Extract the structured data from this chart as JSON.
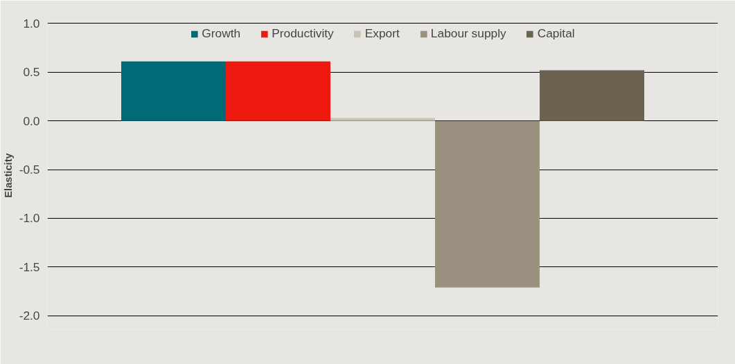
{
  "chart_data": {
    "type": "bar",
    "ylabel": "Elasticity",
    "categories": [
      null
    ],
    "series": [
      {
        "name": "Growth",
        "color": "#006b77",
        "values": [
          0.61
        ]
      },
      {
        "name": "Productivity",
        "color": "#ef1a0f",
        "values": [
          0.61
        ]
      },
      {
        "name": "Export",
        "color": "#c8c2b4",
        "values": [
          0.03
        ]
      },
      {
        "name": "Labour supply",
        "color": "#9b9180",
        "values": [
          -1.71
        ]
      },
      {
        "name": "Capital",
        "color": "#6b6350",
        "values": [
          0.52
        ]
      }
    ],
    "ylim": [
      -2.0,
      1.0
    ],
    "yticks": [
      {
        "value": 1.0,
        "label": "1.0"
      },
      {
        "value": 0.5,
        "label": "0.5"
      },
      {
        "value": 0.0,
        "label": "0.0"
      },
      {
        "value": -0.5,
        "label": "-0.5"
      },
      {
        "value": -1.0,
        "label": "-1.0"
      },
      {
        "value": -1.5,
        "label": "-1.5"
      },
      {
        "value": -2.0,
        "label": "-2.0"
      }
    ],
    "grid": "y",
    "legend": "top"
  }
}
